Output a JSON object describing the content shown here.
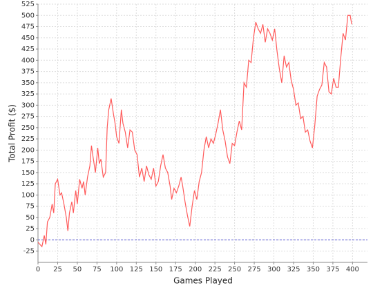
{
  "chart_data": {
    "type": "line",
    "x_label": "Games Played",
    "y_label": "Total Profit ($)",
    "x": [
      0,
      5,
      8,
      10,
      12,
      15,
      18,
      20,
      22,
      25,
      28,
      30,
      33,
      36,
      38,
      40,
      43,
      45,
      48,
      50,
      53,
      56,
      58,
      60,
      63,
      66,
      68,
      70,
      73,
      76,
      78,
      80,
      83,
      86,
      88,
      90,
      93,
      96,
      98,
      100,
      103,
      106,
      108,
      111,
      114,
      117,
      120,
      123,
      126,
      129,
      132,
      135,
      138,
      141,
      144,
      147,
      150,
      153,
      156,
      159,
      162,
      165,
      168,
      170,
      173,
      176,
      179,
      182,
      184,
      187,
      190,
      193,
      196,
      199,
      202,
      205,
      208,
      211,
      214,
      217,
      220,
      223,
      226,
      229,
      232,
      235,
      238,
      241,
      244,
      247,
      250,
      253,
      256,
      259,
      262,
      265,
      268,
      271,
      274,
      277,
      280,
      283,
      286,
      289,
      292,
      295,
      298,
      301,
      304,
      307,
      310,
      313,
      316,
      319,
      322,
      325,
      328,
      331,
      334,
      337,
      340,
      343,
      346,
      349,
      352,
      355,
      358,
      361,
      364,
      367,
      370,
      373,
      376,
      379,
      382,
      385,
      388,
      391,
      394,
      397,
      399
    ],
    "series": [
      {
        "name": "Total Profit",
        "color": "#ff5a5a",
        "values": [
          -5,
          -15,
          10,
          -10,
          40,
          50,
          80,
          60,
          125,
          135,
          100,
          105,
          80,
          50,
          20,
          60,
          85,
          60,
          110,
          80,
          135,
          115,
          130,
          100,
          140,
          165,
          210,
          185,
          150,
          205,
          170,
          180,
          140,
          150,
          250,
          290,
          315,
          280,
          260,
          230,
          215,
          290,
          260,
          240,
          205,
          245,
          240,
          200,
          190,
          140,
          160,
          130,
          165,
          145,
          135,
          160,
          120,
          130,
          165,
          190,
          160,
          150,
          120,
          90,
          115,
          105,
          120,
          140,
          120,
          85,
          55,
          30,
          75,
          110,
          90,
          130,
          150,
          200,
          230,
          205,
          225,
          215,
          235,
          260,
          290,
          245,
          220,
          185,
          170,
          215,
          210,
          240,
          265,
          245,
          350,
          340,
          400,
          395,
          450,
          485,
          470,
          460,
          480,
          440,
          470,
          460,
          445,
          470,
          420,
          380,
          350,
          410,
          385,
          395,
          355,
          335,
          300,
          305,
          270,
          275,
          240,
          245,
          220,
          205,
          255,
          320,
          335,
          345,
          395,
          385,
          330,
          325,
          360,
          340,
          340,
          405,
          460,
          445,
          500,
          500,
          480
        ]
      }
    ],
    "hline": 0,
    "hline_color": "#4a4ad0",
    "xlim": [
      0,
      419
    ],
    "ylim": [
      -50,
      525
    ],
    "xticks": [
      0,
      25,
      50,
      75,
      100,
      125,
      150,
      175,
      200,
      225,
      250,
      275,
      300,
      325,
      350,
      375,
      400
    ],
    "yticks": [
      -25,
      0,
      25,
      50,
      75,
      100,
      125,
      150,
      175,
      200,
      225,
      250,
      275,
      300,
      325,
      350,
      375,
      400,
      425,
      450,
      475,
      500,
      525
    ],
    "grid": true
  }
}
